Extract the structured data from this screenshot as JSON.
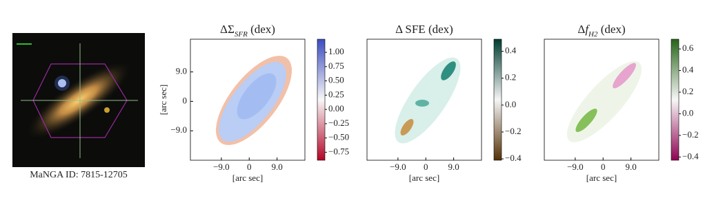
{
  "image_panel": {
    "caption": "MaNGA ID: 7815-12705"
  },
  "chart_data": [
    {
      "type": "heatmap",
      "title": [
        "ΔΣ",
        "SFR",
        " (dex)"
      ],
      "xlabel": "[arc sec]",
      "ylabel": "[arc sec]",
      "xlim": [
        -19,
        18
      ],
      "ylim": [
        -18,
        19
      ],
      "xticks": [
        {
          "value": -9,
          "label": "−9.0"
        },
        0,
        {
          "value": 9,
          "label": "9.0"
        }
      ],
      "yticks": [
        {
          "value": -9,
          "label": "−9.0"
        },
        0,
        {
          "value": 9,
          "label": "9.0"
        }
      ],
      "colorbar": {
        "lim": [
          -0.89,
          1.23
        ],
        "colormap": [
          "#b40426",
          "#f7f7f7",
          "#3b4cc0"
        ],
        "ticks": [
          {
            "value": -0.75,
            "label": "−0.75"
          },
          {
            "value": -0.5,
            "label": "−0.50"
          },
          {
            "value": -0.25,
            "label": "−0.25"
          },
          {
            "value": 0,
            "label": "0.00"
          },
          {
            "value": 0.25,
            "label": "0.25"
          },
          {
            "value": 0.5,
            "label": "0.50"
          },
          {
            "value": 0.75,
            "label": "0.75"
          },
          {
            "value": 1,
            "label": "1.00"
          }
        ]
      }
    },
    {
      "type": "heatmap",
      "title": [
        "Δ SFE",
        "",
        " (dex)"
      ],
      "xlabel": "[arc sec]",
      "xlim": [
        -19,
        18
      ],
      "ylim": [
        -18,
        19
      ],
      "xticks": [
        {
          "value": -9,
          "label": "−9.0"
        },
        0,
        {
          "value": 9,
          "label": "9.0"
        }
      ],
      "colorbar": {
        "lim": [
          -0.41,
          0.49
        ],
        "colormap": [
          "#543005",
          "#f5f5f5",
          "#003c30"
        ],
        "ticks": [
          {
            "value": -0.4,
            "label": "−0.4"
          },
          {
            "value": -0.2,
            "label": "−0.2"
          },
          {
            "value": 0,
            "label": "0.0"
          },
          0.2,
          0.4
        ]
      }
    },
    {
      "type": "heatmap",
      "title": [
        "Δ",
        "f",
        "H2",
        " (dex)"
      ],
      "xlabel": "[arc sec]",
      "xlim": [
        -19,
        18
      ],
      "ylim": [
        -18,
        19
      ],
      "xticks": [
        {
          "value": -9,
          "label": "−9.0"
        },
        0,
        {
          "value": 9,
          "label": "9.0"
        }
      ],
      "colorbar": {
        "lim": [
          -0.43,
          0.69
        ],
        "colormap": [
          "#8e0152",
          "#f7f7f7",
          "#276419"
        ],
        "ticks": [
          {
            "value": -0.4,
            "label": "−0.4"
          },
          {
            "value": -0.2,
            "label": "−0.2"
          },
          {
            "value": 0,
            "label": "0.0"
          },
          0.2,
          0.4,
          0.6
        ]
      }
    }
  ]
}
